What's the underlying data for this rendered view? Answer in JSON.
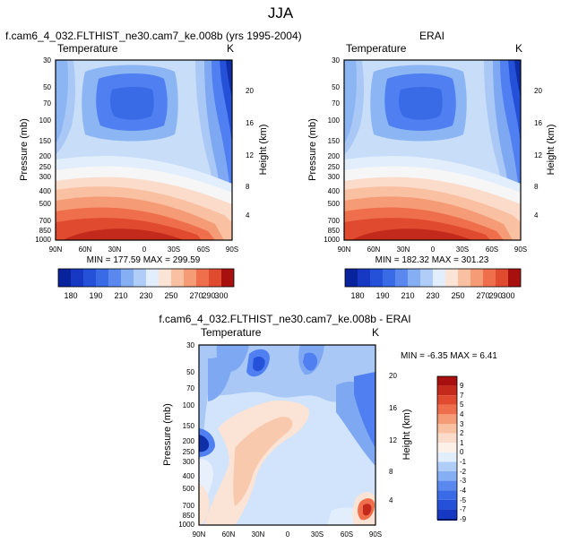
{
  "figure": {
    "title": "JJA"
  },
  "colors": {
    "cold_dark": "#08239b",
    "mid_blue": "#4f7ff0",
    "pale_blue": "#d2e4fb",
    "pale_orange": "#fbd9c6",
    "warm_dark": "#a81010"
  },
  "chart_data": [
    {
      "type": "heatmap",
      "title": "f.cam6_4_032.FLTHIST_ne30.cam7_ke.008b (yrs 1995-2004)",
      "left_label": "Temperature",
      "right_label": "K",
      "xlabel": "",
      "ylabel": "Pressure (mb)",
      "ylabel_right": "Height (km)",
      "x_ticks": [
        "90N",
        "60N",
        "30N",
        "0",
        "30S",
        "60S",
        "90S"
      ],
      "y_ticks": [
        "30",
        "50",
        "70",
        "100",
        "150",
        "200",
        "250",
        "300",
        "400",
        "500",
        "700",
        "850",
        "1000"
      ],
      "y_ticks_right": [
        "20",
        "16",
        "12",
        "8",
        "4"
      ],
      "stats": "MIN = 177.59  MAX = 299.59",
      "levels": [
        180,
        190,
        210,
        230,
        250,
        270,
        290,
        300
      ]
    },
    {
      "type": "heatmap",
      "title": "ERAI",
      "left_label": "Temperature",
      "right_label": "K",
      "xlabel": "",
      "ylabel": "Pressure (mb)",
      "ylabel_right": "Height (km)",
      "x_ticks": [
        "90N",
        "60N",
        "30N",
        "0",
        "30S",
        "60S",
        "90S"
      ],
      "y_ticks": [
        "30",
        "50",
        "70",
        "100",
        "150",
        "200",
        "250",
        "300",
        "400",
        "500",
        "700",
        "850",
        "1000"
      ],
      "y_ticks_right": [
        "20",
        "16",
        "12",
        "8",
        "4"
      ],
      "stats": "MIN = 182.32  MAX = 301.23",
      "levels": [
        180,
        190,
        210,
        230,
        250,
        270,
        290,
        300
      ]
    },
    {
      "type": "heatmap",
      "title": "f.cam6_4_032.FLTHIST_ne30.cam7_ke.008b - ERAI",
      "left_label": "Temperature",
      "right_label": "K",
      "xlabel": "",
      "ylabel": "Pressure (mb)",
      "ylabel_right": "Height (km)",
      "x_ticks": [
        "90N",
        "60N",
        "30N",
        "0",
        "30S",
        "60S",
        "90S"
      ],
      "y_ticks": [
        "30",
        "50",
        "70",
        "100",
        "150",
        "200",
        "250",
        "300",
        "400",
        "500",
        "700",
        "850",
        "1000"
      ],
      "y_ticks_right": [
        "20",
        "16",
        "12",
        "8",
        "4"
      ],
      "stats": "MIN = -6.35  MAX =  6.41",
      "levels": [
        "9",
        "7",
        "5",
        "4",
        "3",
        "2",
        "1",
        "0",
        "-1",
        "-2",
        "-3",
        "-4",
        "-5",
        "-7",
        "-9"
      ]
    }
  ]
}
